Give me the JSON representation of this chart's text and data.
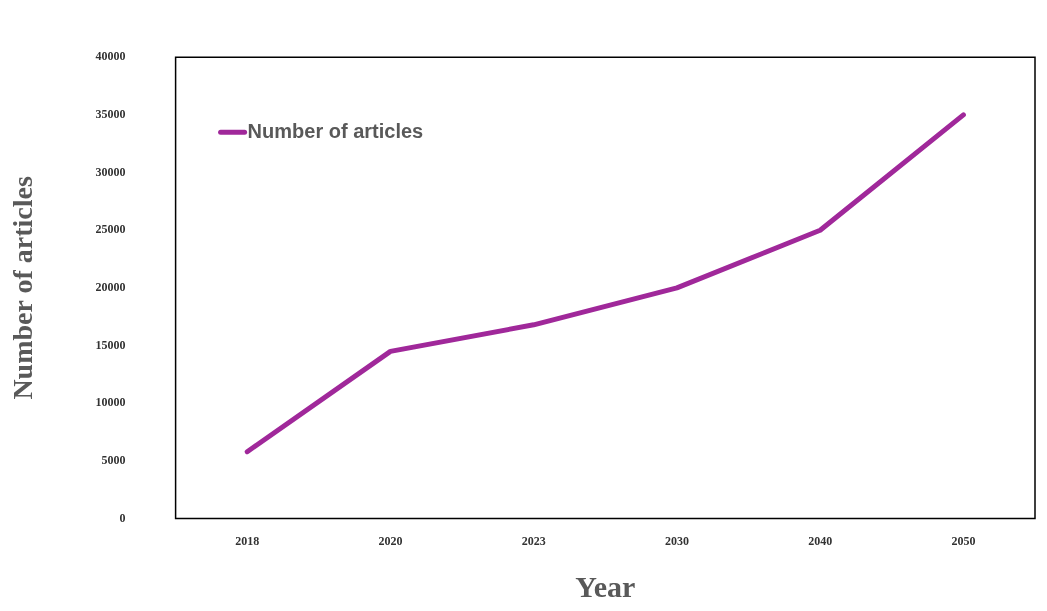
{
  "chart_data": {
    "type": "line",
    "xlabel": "Year",
    "ylabel": "Number of articles",
    "categories": [
      "2018",
      "2020",
      "2023",
      "2030",
      "2040",
      "2050"
    ],
    "series": [
      {
        "name": "Number of articles",
        "color": "#a0289a",
        "values": [
          5800,
          14500,
          16800,
          20000,
          25000,
          35000
        ]
      }
    ],
    "ylim": [
      0,
      40000
    ],
    "yticks": [
      0,
      5000,
      10000,
      15000,
      20000,
      25000,
      30000,
      35000,
      40000
    ],
    "grid": false,
    "legend": "top left",
    "marker": "none",
    "line_style": "solid"
  }
}
